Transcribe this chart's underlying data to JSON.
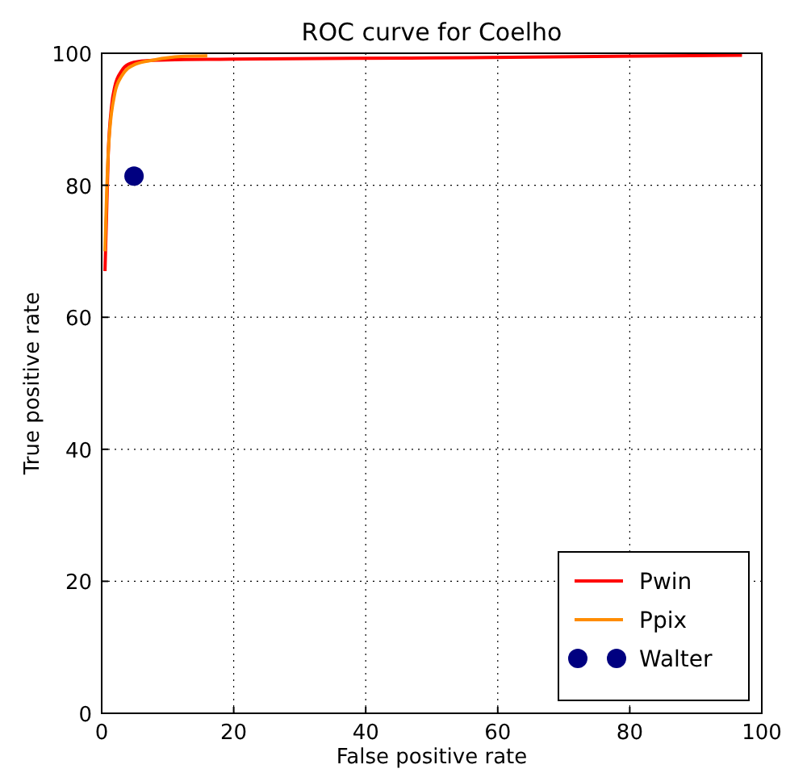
{
  "chart_data": {
    "type": "line",
    "title": "ROC curve for Coelho",
    "xlabel": "False positive rate",
    "ylabel": "True positive rate",
    "xlim": [
      0,
      100
    ],
    "ylim": [
      0,
      100
    ],
    "xticks": [
      0,
      20,
      40,
      60,
      80,
      100
    ],
    "yticks": [
      0,
      20,
      40,
      60,
      80,
      100
    ],
    "grid": true,
    "legend": "bottom right",
    "series": [
      {
        "name": "Pwin",
        "color": "#ff0000",
        "x": [
          0.5,
          1,
          1.5,
          2,
          3,
          4,
          6,
          10,
          20,
          50,
          97
        ],
        "values": [
          67,
          85,
          92,
          95,
          97.3,
          98.3,
          98.8,
          99,
          99.1,
          99.3,
          99.7
        ]
      },
      {
        "name": "Ppix",
        "color": "#ff8c00",
        "x": [
          0.5,
          1,
          2,
          3,
          5,
          8,
          12,
          16
        ],
        "values": [
          70,
          85,
          94,
          96.5,
          98.3,
          99,
          99.5,
          99.6
        ]
      },
      {
        "name": "Walter",
        "color": "#000080",
        "type": "scatter",
        "marker": "circle",
        "x": [
          4.9
        ],
        "values": [
          81.4
        ]
      }
    ]
  }
}
